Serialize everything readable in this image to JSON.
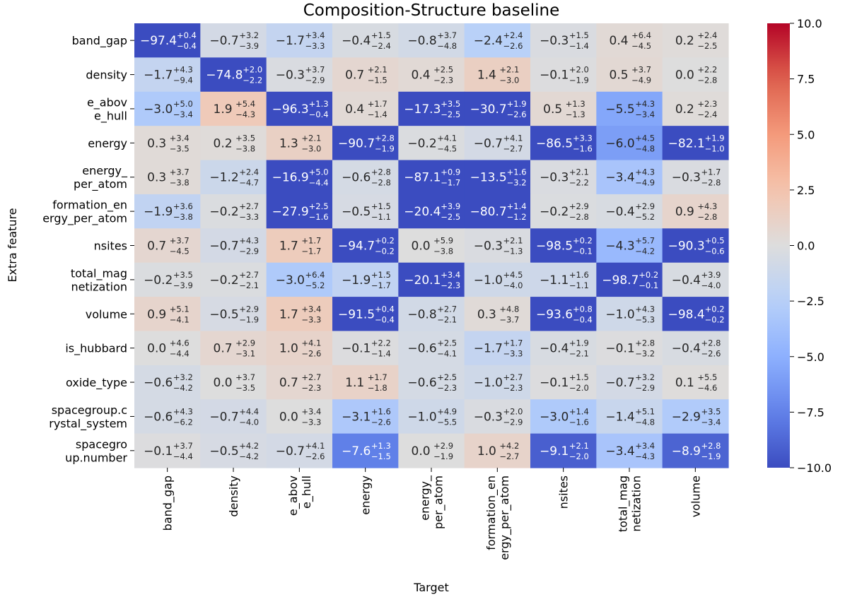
{
  "chart_data": {
    "type": "heatmap",
    "title": "Composition-Structure baseline",
    "xlabel": "Target",
    "ylabel": "Extra feature",
    "x_categories": [
      [
        "band_gap"
      ],
      [
        "density"
      ],
      [
        "e_abov",
        "e_hull"
      ],
      [
        "energy"
      ],
      [
        "energy_",
        "per_atom"
      ],
      [
        "formation_en",
        "ergy_per_atom"
      ],
      [
        "nsites"
      ],
      [
        "total_mag",
        "netization"
      ],
      [
        "volume"
      ]
    ],
    "y_categories": [
      [
        "band_gap"
      ],
      [
        "density"
      ],
      [
        "e_abov",
        "e_hull"
      ],
      [
        "energy"
      ],
      [
        "energy_",
        "per_atom"
      ],
      [
        "formation_en",
        "ergy_per_atom"
      ],
      [
        "nsites"
      ],
      [
        "total_mag",
        "netization"
      ],
      [
        "volume"
      ],
      [
        "is_hubbard"
      ],
      [
        "oxide_type"
      ],
      [
        "spacegroup.c",
        "rystal_system"
      ],
      [
        "spacegro",
        "up.number"
      ]
    ],
    "values": [
      [
        -97.4,
        -0.7,
        -1.7,
        -0.4,
        -0.8,
        -2.4,
        -0.3,
        0.4,
        0.2
      ],
      [
        -1.7,
        -74.8,
        -0.3,
        0.7,
        0.4,
        1.4,
        -0.1,
        0.5,
        0.0
      ],
      [
        -3.0,
        1.9,
        -96.3,
        0.4,
        -17.3,
        -30.7,
        0.5,
        -5.5,
        0.2
      ],
      [
        0.3,
        0.2,
        1.3,
        -90.7,
        -0.2,
        -0.7,
        -86.5,
        -6.0,
        -82.1
      ],
      [
        0.3,
        -1.2,
        -16.9,
        -0.6,
        -87.1,
        -13.5,
        -0.3,
        -3.4,
        -0.3
      ],
      [
        -1.9,
        -0.2,
        -27.9,
        -0.5,
        -20.4,
        -80.7,
        -0.2,
        -0.4,
        0.9
      ],
      [
        0.7,
        -0.7,
        1.7,
        -94.7,
        0.0,
        -0.3,
        -98.5,
        -4.3,
        -90.3
      ],
      [
        -0.2,
        -0.2,
        -3.0,
        -1.9,
        -20.1,
        -1.0,
        -1.1,
        -98.7,
        -0.4
      ],
      [
        0.9,
        -0.5,
        1.7,
        -91.5,
        -0.8,
        0.3,
        -93.6,
        -1.0,
        -98.4
      ],
      [
        0.0,
        0.7,
        1.0,
        -0.1,
        -0.6,
        -1.7,
        -0.4,
        -0.1,
        -0.4
      ],
      [
        -0.6,
        0.0,
        0.7,
        1.1,
        -0.6,
        -1.0,
        -0.1,
        -0.7,
        0.1
      ],
      [
        -0.6,
        -0.7,
        0.0,
        -3.1,
        -1.0,
        -0.3,
        -3.0,
        -1.4,
        -2.9
      ],
      [
        -0.1,
        -0.5,
        -0.7,
        -7.6,
        0.0,
        1.0,
        -9.1,
        -3.4,
        -8.9
      ]
    ],
    "upper": [
      [
        "+0.4",
        "+3.2",
        "+3.4",
        "+1.5",
        "+3.7",
        "+2.4",
        "+1.5",
        "+6.4",
        "+2.4"
      ],
      [
        "+4.3",
        "+2.0",
        "+3.7",
        "+2.1",
        "+2.5",
        "+2.1",
        "+2.0",
        "+3.7",
        "+2.2"
      ],
      [
        "+5.0",
        "+5.4",
        "+1.3",
        "+1.7",
        "+3.5",
        "+1.9",
        "+1.3",
        "+4.3",
        "+2.3"
      ],
      [
        "+3.4",
        "+3.5",
        "+2.1",
        "+2.8",
        "+4.1",
        "+4.1",
        "+3.3",
        "+4.5",
        "+1.9"
      ],
      [
        "+3.7",
        "+2.4",
        "+5.0",
        "+2.8",
        "+0.9",
        "+1.6",
        "+2.1",
        "+4.3",
        "+1.7"
      ],
      [
        "+3.6",
        "+2.7",
        "+2.5",
        "+1.5",
        "+3.9",
        "+1.4",
        "+2.9",
        "+2.9",
        "+4.3"
      ],
      [
        "+3.7",
        "+4.3",
        "+1.7",
        "+0.2",
        "+5.9",
        "+2.1",
        "+0.2",
        "+5.7",
        "+0.5"
      ],
      [
        "+3.5",
        "+2.7",
        "+6.4",
        "+1.5",
        "+3.4",
        "+4.5",
        "+1.6",
        "+0.2",
        "+3.9"
      ],
      [
        "+5.1",
        "+2.9",
        "+3.4",
        "+0.4",
        "+2.7",
        "+4.8",
        "+0.8",
        "+4.3",
        "+0.2"
      ],
      [
        "+4.6",
        "+2.9",
        "+4.1",
        "+2.2",
        "+2.5",
        "+1.7",
        "+1.9",
        "+2.8",
        "+2.8"
      ],
      [
        "+3.2",
        "+3.7",
        "+2.7",
        "+1.7",
        "+2.5",
        "+2.7",
        "+1.5",
        "+3.2",
        "+5.5"
      ],
      [
        "+4.3",
        "+4.4",
        "+3.4",
        "+1.6",
        "+4.9",
        "+2.0",
        "+1.4",
        "+5.1",
        "+3.5"
      ],
      [
        "+3.7",
        "+4.2",
        "+4.1",
        "+1.3",
        "+2.9",
        "+4.2",
        "+2.1",
        "+3.4",
        "+2.8"
      ]
    ],
    "lower": [
      [
        "−0.4",
        "−3.9",
        "−3.3",
        "−2.4",
        "−4.8",
        "−2.6",
        "−1.4",
        "−4.5",
        "−2.5"
      ],
      [
        "−9.4",
        "−2.2",
        "−2.9",
        "−1.5",
        "−2.3",
        "−3.0",
        "−1.9",
        "−4.9",
        "−2.8"
      ],
      [
        "−3.4",
        "−4.3",
        "−0.4",
        "−1.4",
        "−2.5",
        "−2.6",
        "−1.3",
        "−3.4",
        "−2.4"
      ],
      [
        "−3.5",
        "−3.8",
        "−3.0",
        "−1.9",
        "−4.5",
        "−2.7",
        "−1.6",
        "−4.8",
        "−1.0"
      ],
      [
        "−3.8",
        "−4.7",
        "−4.4",
        "−2.8",
        "−1.7",
        "−3.2",
        "−2.2",
        "−4.9",
        "−2.8"
      ],
      [
        "−3.8",
        "−3.3",
        "−1.6",
        "−1.1",
        "−2.5",
        "−1.2",
        "−2.8",
        "−5.2",
        "−2.8"
      ],
      [
        "−4.5",
        "−2.9",
        "−1.7",
        "−0.2",
        "−3.8",
        "−1.3",
        "−0.1",
        "−4.2",
        "−0.6"
      ],
      [
        "−3.9",
        "−2.1",
        "−5.2",
        "−1.7",
        "−2.3",
        "−4.0",
        "−1.1",
        "−0.1",
        "−4.0"
      ],
      [
        "−4.1",
        "−1.9",
        "−3.3",
        "−0.4",
        "−2.1",
        "−3.7",
        "−0.4",
        "−5.3",
        "−0.2"
      ],
      [
        "−4.4",
        "−3.1",
        "−2.6",
        "−1.4",
        "−4.1",
        "−3.3",
        "−2.1",
        "−3.2",
        "−2.6"
      ],
      [
        "−4.2",
        "−3.5",
        "−2.3",
        "−1.8",
        "−2.3",
        "−2.3",
        "−2.0",
        "−2.9",
        "−4.6"
      ],
      [
        "−6.2",
        "−4.0",
        "−3.3",
        "−2.6",
        "−5.5",
        "−2.9",
        "−1.6",
        "−4.8",
        "−3.4"
      ],
      [
        "−4.4",
        "−4.2",
        "−2.6",
        "−1.5",
        "−1.9",
        "−2.7",
        "−2.0",
        "−4.3",
        "−1.9"
      ]
    ],
    "colormap": "coolwarm",
    "color_range": [
      -10,
      10
    ],
    "colorbar_ticks": [
      "10.0",
      "7.5",
      "5.0",
      "2.5",
      "0.0",
      "−2.5",
      "−5.0",
      "−7.5",
      "−10.0"
    ]
  }
}
